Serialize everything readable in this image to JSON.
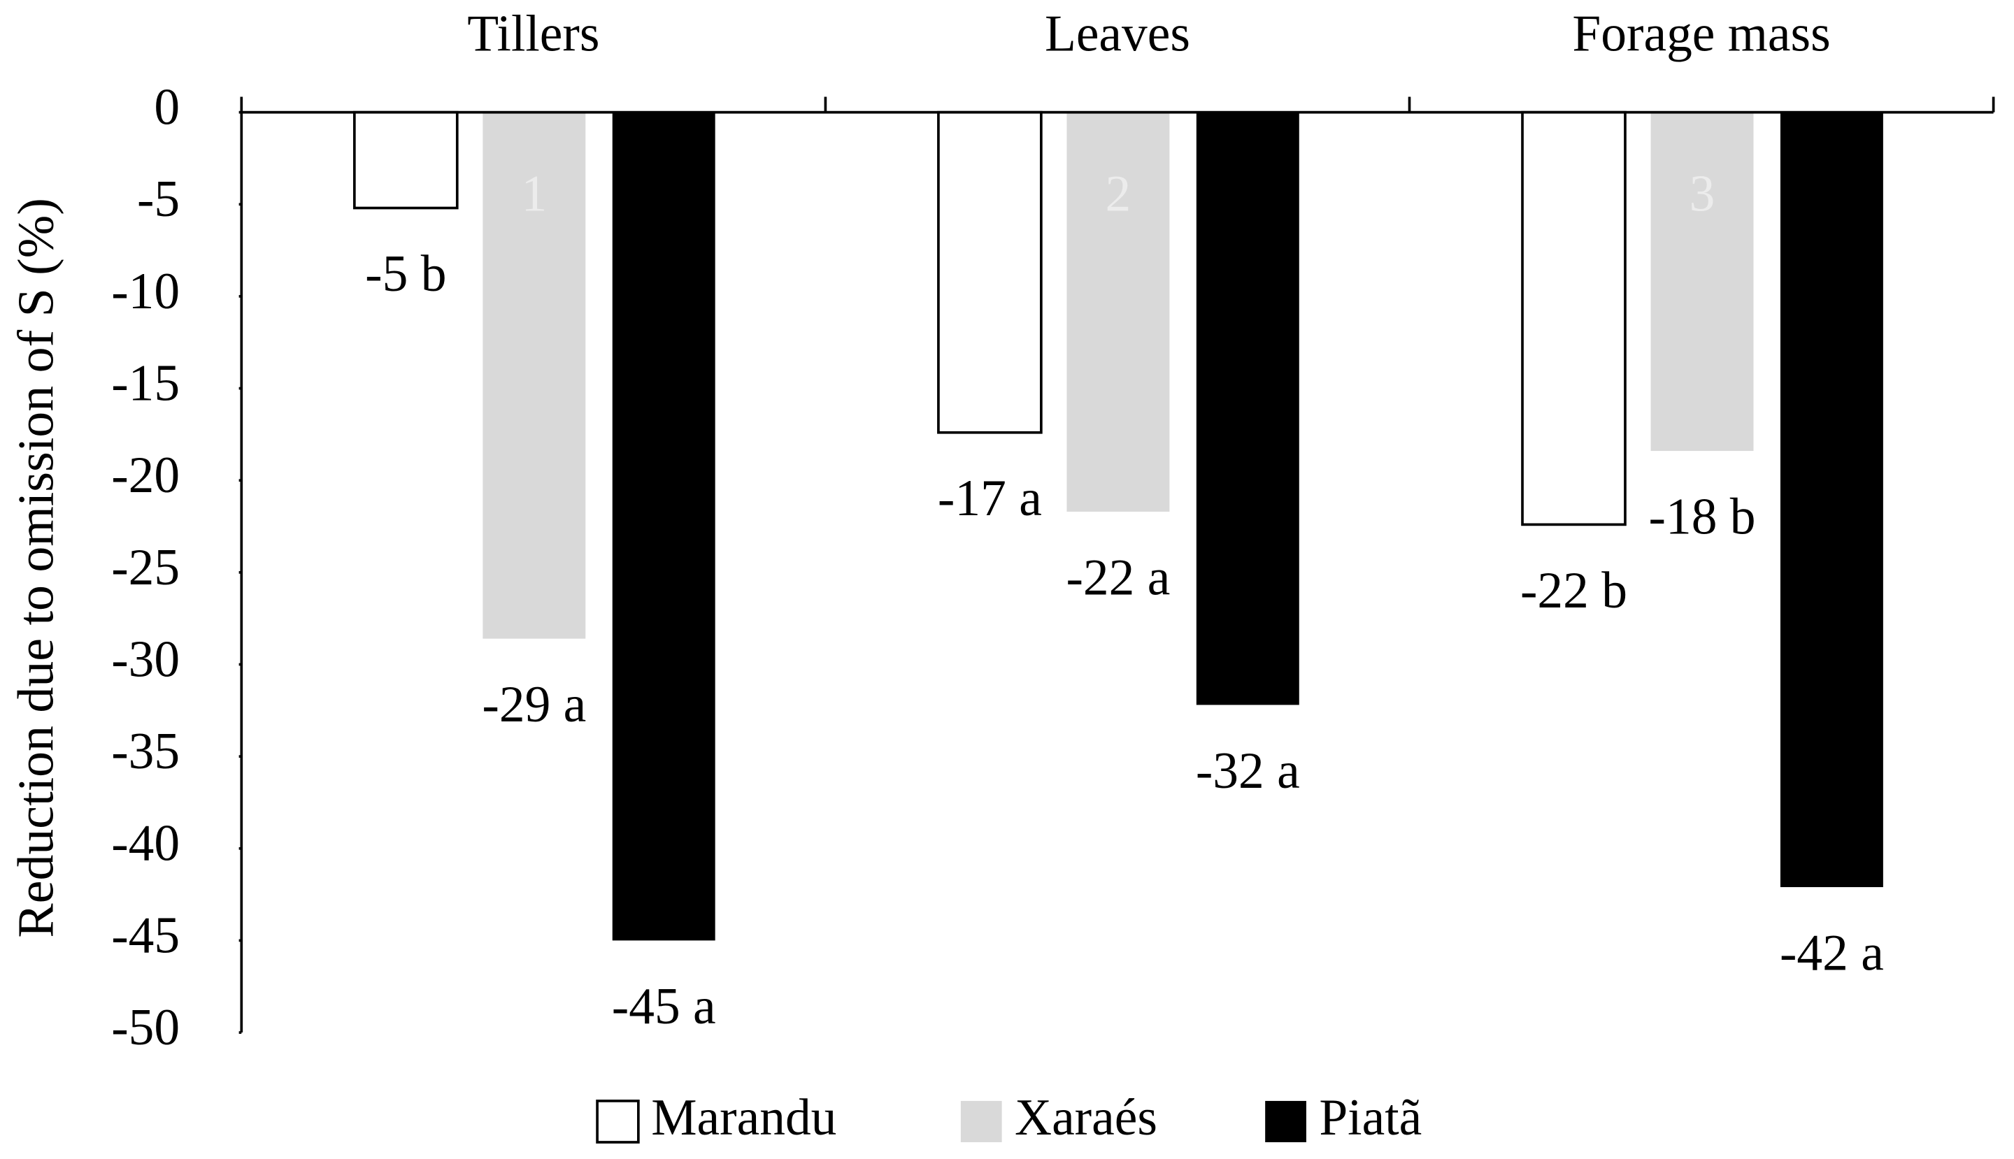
{
  "chart_data": {
    "type": "bar",
    "y_label": "Reduction due to omission of S  (%)",
    "categories": [
      "Tillers",
      "Leaves",
      "Forage mass"
    ],
    "series": [
      {
        "name": "Marandu",
        "color": "#ffffff",
        "values": [
          -5.2,
          -17.4,
          -22.4
        ],
        "value_labels": [
          "-5 b",
          "-17 a",
          "-22 b"
        ]
      },
      {
        "name": "Xaraés",
        "color": "#d9d9d9",
        "values": [
          -28.6,
          -21.7,
          -18.4
        ],
        "value_labels": [
          "-29 a",
          "-22 a",
          "-18 b"
        ]
      },
      {
        "name": "Piatã",
        "color": "#000000",
        "values": [
          -45,
          -32.2,
          -42.1
        ],
        "value_labels": [
          "-45 a",
          "-32 a",
          "-42 a"
        ]
      }
    ],
    "panel_labels": [
      "1",
      "2",
      "3"
    ],
    "ylim": [
      -50,
      0
    ],
    "yticks": [
      0,
      -5,
      -10,
      -15,
      -20,
      -25,
      -30,
      -35,
      -40,
      -45,
      -50
    ]
  }
}
